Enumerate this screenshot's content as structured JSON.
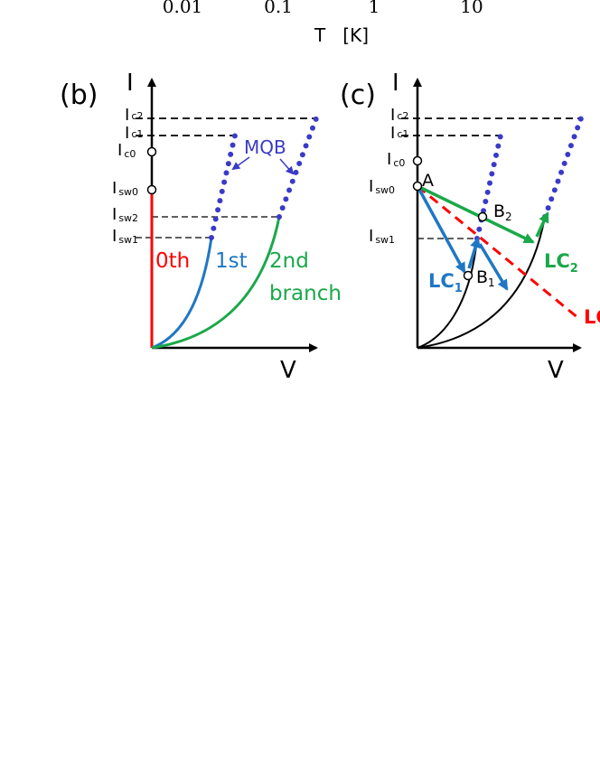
{
  "top_axis": {
    "ticks": [
      "0.01",
      "0.1",
      "1",
      "10"
    ],
    "xlabel": "T   [K]"
  },
  "panel_b": {
    "tag": "(b)",
    "y_axis_label": "I",
    "x_axis_label": "V",
    "current_levels": [
      {
        "name": "c2",
        "symbol": "I",
        "sub": "c2"
      },
      {
        "name": "c1",
        "symbol": "I",
        "sub": "c1"
      },
      {
        "name": "c0",
        "symbol": "I",
        "sub": "c0"
      },
      {
        "name": "sw0",
        "symbol": "I",
        "sub": "sw0"
      },
      {
        "name": "sw2",
        "symbol": "I",
        "sub": "sw2"
      },
      {
        "name": "sw1",
        "symbol": "I",
        "sub": "sw1"
      }
    ],
    "mqb_label": "MQB",
    "branch_labels": {
      "zeroth": "0th",
      "first": "1st",
      "second": "2nd",
      "second_line2": "branch"
    },
    "colors": {
      "zeroth": "#ff0000",
      "first": "#1f77c4",
      "second": "#1aa84a",
      "mqb": "#3a3ac8"
    }
  },
  "panel_c": {
    "tag": "(c)",
    "y_axis_label": "I",
    "x_axis_label": "V",
    "current_levels": [
      {
        "name": "c2",
        "symbol": "I",
        "sub": "c2"
      },
      {
        "name": "c1",
        "symbol": "I",
        "sub": "c1"
      },
      {
        "name": "c0",
        "symbol": "I",
        "sub": "c0"
      },
      {
        "name": "sw0",
        "symbol": "I",
        "sub": "sw0"
      },
      {
        "name": "sw1",
        "symbol": "I",
        "sub": "sw1"
      }
    ],
    "points": {
      "A": "A",
      "B2": "B",
      "B2_sub": "2",
      "B1": "B",
      "B1_sub": "1"
    },
    "load_lines": {
      "lc1": "LC",
      "lc1_sub": "1",
      "lc2": "LC",
      "lc2_sub": "2",
      "lc0": "LC"
    },
    "colors": {
      "lc1": "#1f77c4",
      "lc2": "#1aa84a",
      "lc0": "#ff0000",
      "mqb": "#3a3ac8"
    }
  }
}
